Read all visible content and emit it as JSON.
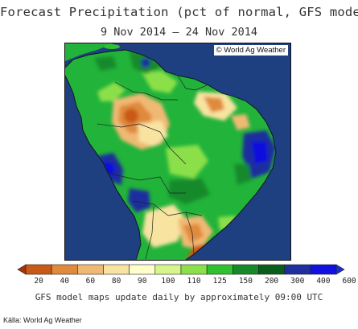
{
  "header": {
    "title": "Forecast Precipitation (pct of normal, GFS model)",
    "date_range": "9 Nov 2014 – 24 Nov 2014"
  },
  "map": {
    "credit": "© World Ag Weather",
    "background_ocean": "#1e3f80",
    "land_default": "#22b33a"
  },
  "legend": {
    "labels": [
      "20",
      "40",
      "60",
      "80",
      "90",
      "100",
      "110",
      "125",
      "150",
      "200",
      "300",
      "400",
      "600"
    ],
    "colors": [
      "#a6340c",
      "#c85a17",
      "#e08a3e",
      "#f0b973",
      "#f8e3a0",
      "#ffffcc",
      "#d6f58a",
      "#8be04a",
      "#2fc12f",
      "#168a2a",
      "#0a5e1c",
      "#1f2f9e",
      "#1010e0",
      "#1a2fd0"
    ]
  },
  "footer": {
    "note": "GFS model maps update daily by approximately 09:00 UTC",
    "source": "Källa: World Ag Weather"
  }
}
